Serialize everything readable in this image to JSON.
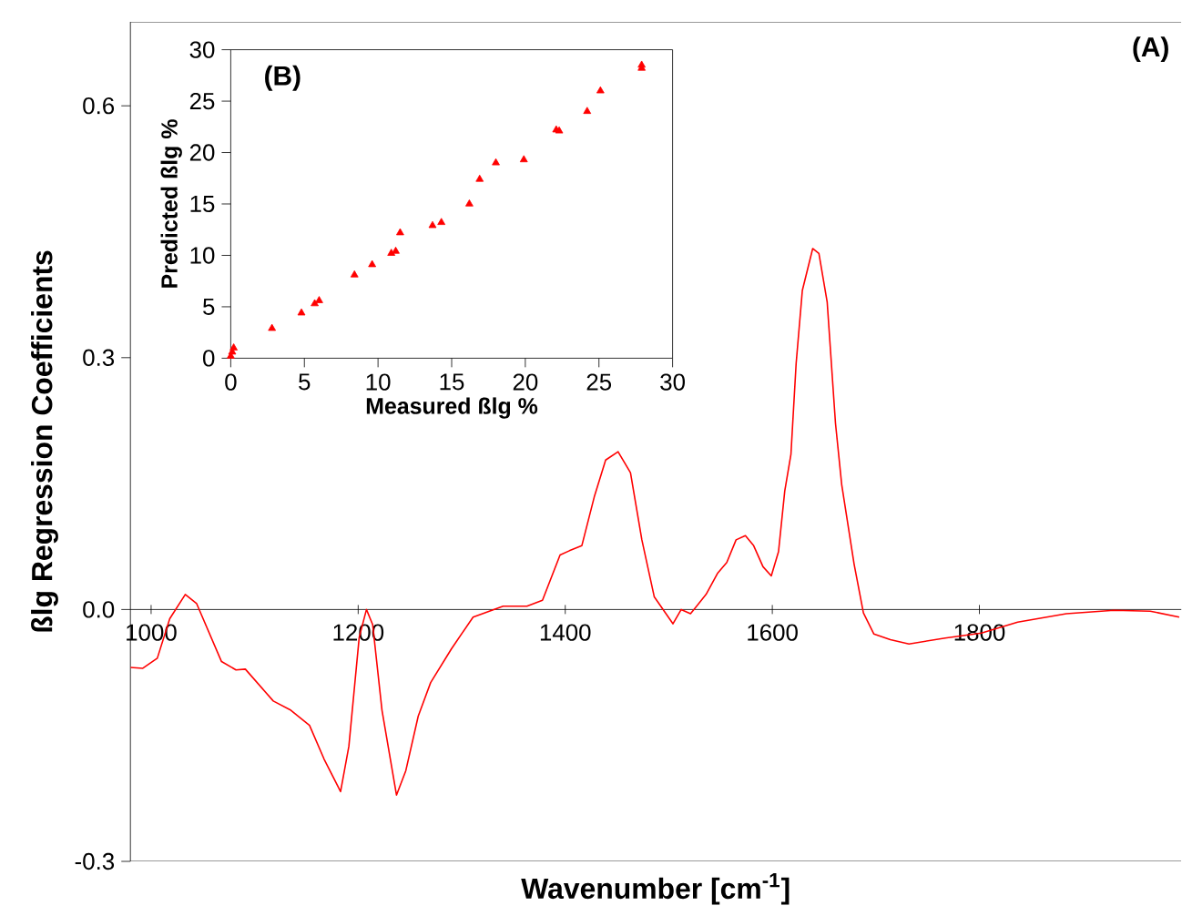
{
  "chart_data": [
    {
      "type": "line",
      "xlabel": "Wavenumber [cm$^{-1}$]",
      "ylabel": "ßlg Regression Coefficients",
      "annotations": [
        "(A)"
      ],
      "x": [
        980,
        992,
        1006,
        1018,
        1033,
        1044,
        1068,
        1082,
        1091,
        1118,
        1135,
        1153,
        1167,
        1183,
        1191,
        1201,
        1208,
        1214,
        1223,
        1237,
        1246,
        1258,
        1270,
        1290,
        1311,
        1340,
        1363,
        1378,
        1395,
        1404,
        1416,
        1428,
        1439,
        1451,
        1463,
        1474,
        1486,
        1504,
        1512,
        1521,
        1536,
        1547,
        1556,
        1565,
        1574,
        1582,
        1591,
        1599,
        1606,
        1612,
        1618,
        1623,
        1629,
        1639,
        1645,
        1653,
        1661,
        1667,
        1679,
        1688,
        1698,
        1714,
        1732,
        1767,
        1802,
        1837,
        1884,
        1930,
        1965,
        1993
      ],
      "series": [
        {
          "color": "#ff0000",
          "values": [
            -0.069,
            -0.07,
            -0.058,
            -0.011,
            0.018,
            0.007,
            -0.062,
            -0.072,
            -0.071,
            -0.109,
            -0.12,
            -0.138,
            -0.178,
            -0.217,
            -0.163,
            -0.033,
            0.0,
            -0.018,
            -0.12,
            -0.221,
            -0.192,
            -0.127,
            -0.087,
            -0.047,
            -0.009,
            0.004,
            0.004,
            0.011,
            0.065,
            0.07,
            0.076,
            0.134,
            0.178,
            0.188,
            0.163,
            0.083,
            0.015,
            -0.017,
            0.0,
            -0.005,
            0.018,
            0.043,
            0.056,
            0.083,
            0.088,
            0.076,
            0.051,
            0.04,
            0.069,
            0.141,
            0.185,
            0.293,
            0.38,
            0.43,
            0.424,
            0.366,
            0.222,
            0.149,
            0.054,
            -0.004,
            -0.029,
            -0.036,
            -0.041,
            -0.034,
            -0.028,
            -0.015,
            -0.005,
            -0.001,
            -0.002,
            -0.009
          ]
        }
      ],
      "xlim": [
        980,
        1995
      ],
      "ylim": [
        -0.3,
        0.7
      ],
      "xticks": [
        1000,
        1200,
        1400,
        1600,
        1800
      ],
      "yticks": [
        {
          "value": -0.3,
          "label": "-0.3"
        },
        {
          "value": 0,
          "label": "0.0"
        },
        0.3,
        0.6
      ],
      "marker": "none"
    },
    {
      "type": "scatter",
      "xlabel": "Measured ßlg %",
      "ylabel": "Predicted ßlg %",
      "annotations": [
        "(B)"
      ],
      "x": [
        0,
        0.1,
        0.2,
        2.8,
        4.8,
        5.7,
        6.0,
        8.4,
        9.6,
        10.9,
        11.2,
        11.5,
        13.7,
        14.3,
        16.2,
        16.9,
        18.0,
        19.9,
        22.1,
        22.3,
        24.2,
        25.1,
        27.9,
        27.9
      ],
      "series": [
        {
          "color": "#ff0000",
          "values": [
            0.2,
            0.6,
            1.0,
            2.9,
            4.4,
            5.3,
            5.6,
            8.1,
            9.1,
            10.2,
            10.4,
            12.2,
            12.9,
            13.2,
            15.0,
            17.4,
            19.0,
            19.3,
            22.2,
            22.1,
            24.0,
            26.0,
            28.5,
            28.2
          ]
        }
      ],
      "xlim": [
        0,
        30
      ],
      "ylim": [
        0,
        30
      ],
      "xticks": [
        0,
        5,
        10,
        15,
        20,
        25,
        30
      ],
      "yticks": [
        0,
        5,
        10,
        15,
        20,
        25,
        30
      ],
      "marker": "triangle"
    }
  ]
}
